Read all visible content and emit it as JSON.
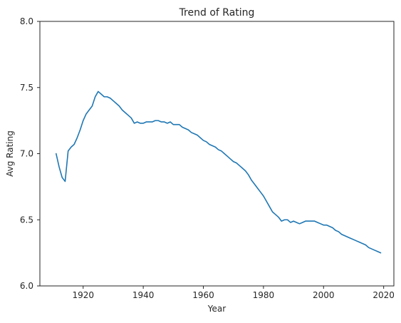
{
  "chart_data": {
    "type": "line",
    "title": "Trend of Rating",
    "xlabel": "Year",
    "ylabel": "Avg Rating",
    "xlim": [
      1905.6,
      2023.4
    ],
    "ylim": [
      6.0,
      8.0
    ],
    "xticks": [
      1920,
      1940,
      1960,
      1980,
      2000,
      2020
    ],
    "yticks": [
      6.0,
      6.5,
      7.0,
      7.5,
      8.0
    ],
    "xtick_labels": [
      "1920",
      "1940",
      "1960",
      "1980",
      "2000",
      "2020"
    ],
    "ytick_labels": [
      "6.0",
      "6.5",
      "7.0",
      "7.5",
      "8.0"
    ],
    "grid": false,
    "series": [
      {
        "color": "#1f77b4",
        "x": [
          1911,
          1912,
          1913,
          1914,
          1915,
          1916,
          1917,
          1918,
          1919,
          1920,
          1921,
          1922,
          1923,
          1924,
          1925,
          1926,
          1927,
          1928,
          1929,
          1930,
          1931,
          1932,
          1933,
          1934,
          1935,
          1936,
          1937,
          1938,
          1939,
          1940,
          1941,
          1942,
          1943,
          1944,
          1945,
          1946,
          1947,
          1948,
          1949,
          1950,
          1951,
          1952,
          1953,
          1954,
          1955,
          1956,
          1957,
          1958,
          1959,
          1960,
          1961,
          1962,
          1963,
          1964,
          1965,
          1966,
          1967,
          1968,
          1969,
          1970,
          1971,
          1972,
          1973,
          1974,
          1975,
          1976,
          1977,
          1978,
          1979,
          1980,
          1981,
          1982,
          1983,
          1984,
          1985,
          1986,
          1987,
          1988,
          1989,
          1990,
          1991,
          1992,
          1993,
          1994,
          1995,
          1996,
          1997,
          1998,
          1999,
          2000,
          2001,
          2002,
          2003,
          2004,
          2005,
          2006,
          2007,
          2008,
          2009,
          2010,
          2011,
          2012,
          2013,
          2014,
          2015,
          2016,
          2017,
          2018,
          2019
        ],
        "y": [
          7.0,
          6.9,
          6.82,
          6.79,
          7.02,
          7.05,
          7.07,
          7.12,
          7.18,
          7.25,
          7.3,
          7.33,
          7.36,
          7.43,
          7.47,
          7.45,
          7.43,
          7.43,
          7.42,
          7.4,
          7.38,
          7.36,
          7.33,
          7.31,
          7.29,
          7.27,
          7.23,
          7.24,
          7.23,
          7.23,
          7.24,
          7.24,
          7.24,
          7.25,
          7.25,
          7.24,
          7.24,
          7.23,
          7.24,
          7.22,
          7.22,
          7.22,
          7.2,
          7.19,
          7.18,
          7.16,
          7.15,
          7.14,
          7.12,
          7.1,
          7.09,
          7.07,
          7.06,
          7.05,
          7.03,
          7.02,
          7.0,
          6.98,
          6.96,
          6.94,
          6.93,
          6.91,
          6.89,
          6.87,
          6.84,
          6.8,
          6.77,
          6.74,
          6.71,
          6.68,
          6.64,
          6.6,
          6.56,
          6.54,
          6.52,
          6.49,
          6.5,
          6.5,
          6.48,
          6.49,
          6.48,
          6.47,
          6.48,
          6.49,
          6.49,
          6.49,
          6.49,
          6.48,
          6.47,
          6.46,
          6.46,
          6.45,
          6.44,
          6.42,
          6.41,
          6.39,
          6.38,
          6.37,
          6.36,
          6.35,
          6.34,
          6.33,
          6.32,
          6.31,
          6.29,
          6.28,
          6.27,
          6.26,
          6.25
        ]
      }
    ]
  }
}
